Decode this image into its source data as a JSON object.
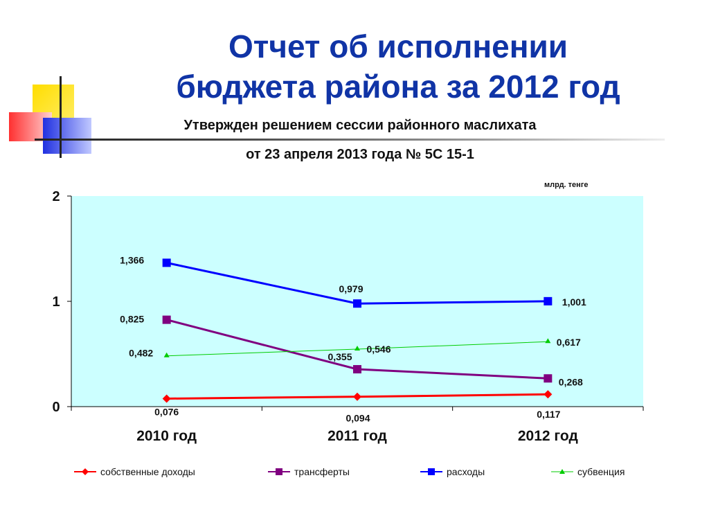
{
  "title_line1": "Отчет об исполнении",
  "title_line2": "бюджета района за 2012 год",
  "subtitle_line1": "Утвержден решением сессии районного маслихата",
  "subtitle_line2": "от 23 апреля 2013 года № 5С 15-1",
  "units": "млрд. тенге",
  "colors": {
    "title": "#1034a6",
    "plot_bg": "#ccffff",
    "own_revenue": "#ff0000",
    "transfers": "#800080",
    "expenses": "#0000ff",
    "subvention": "#00cc00"
  },
  "chart_data": {
    "type": "line",
    "title": "",
    "xlabel": "",
    "ylabel": "",
    "categories": [
      "2010 год",
      "2011 год",
      "2012 год"
    ],
    "ylim": [
      0,
      2
    ],
    "yticks": [
      "0",
      "1",
      "2"
    ],
    "grid": false,
    "legend_position": "bottom",
    "series": [
      {
        "name": "собственные доходы",
        "values": [
          0.076,
          0.094,
          0.117
        ],
        "labels": [
          "0,076",
          "0,094",
          "0,117"
        ],
        "color": "#ff0000",
        "marker": "diamond"
      },
      {
        "name": "трансферты",
        "values": [
          0.825,
          0.355,
          0.268
        ],
        "labels": [
          "0,825",
          "0,355",
          "0,268"
        ],
        "color": "#800080",
        "marker": "square"
      },
      {
        "name": "расходы",
        "values": [
          1.366,
          0.979,
          1.001
        ],
        "labels": [
          "1,366",
          "0,979",
          "1,001"
        ],
        "color": "#0000ff",
        "marker": "square"
      },
      {
        "name": "субвенция",
        "values": [
          0.482,
          0.546,
          0.617
        ],
        "labels": [
          "0,482",
          "0,546",
          "0,617"
        ],
        "color": "#00cc00",
        "marker": "triangle"
      }
    ]
  }
}
